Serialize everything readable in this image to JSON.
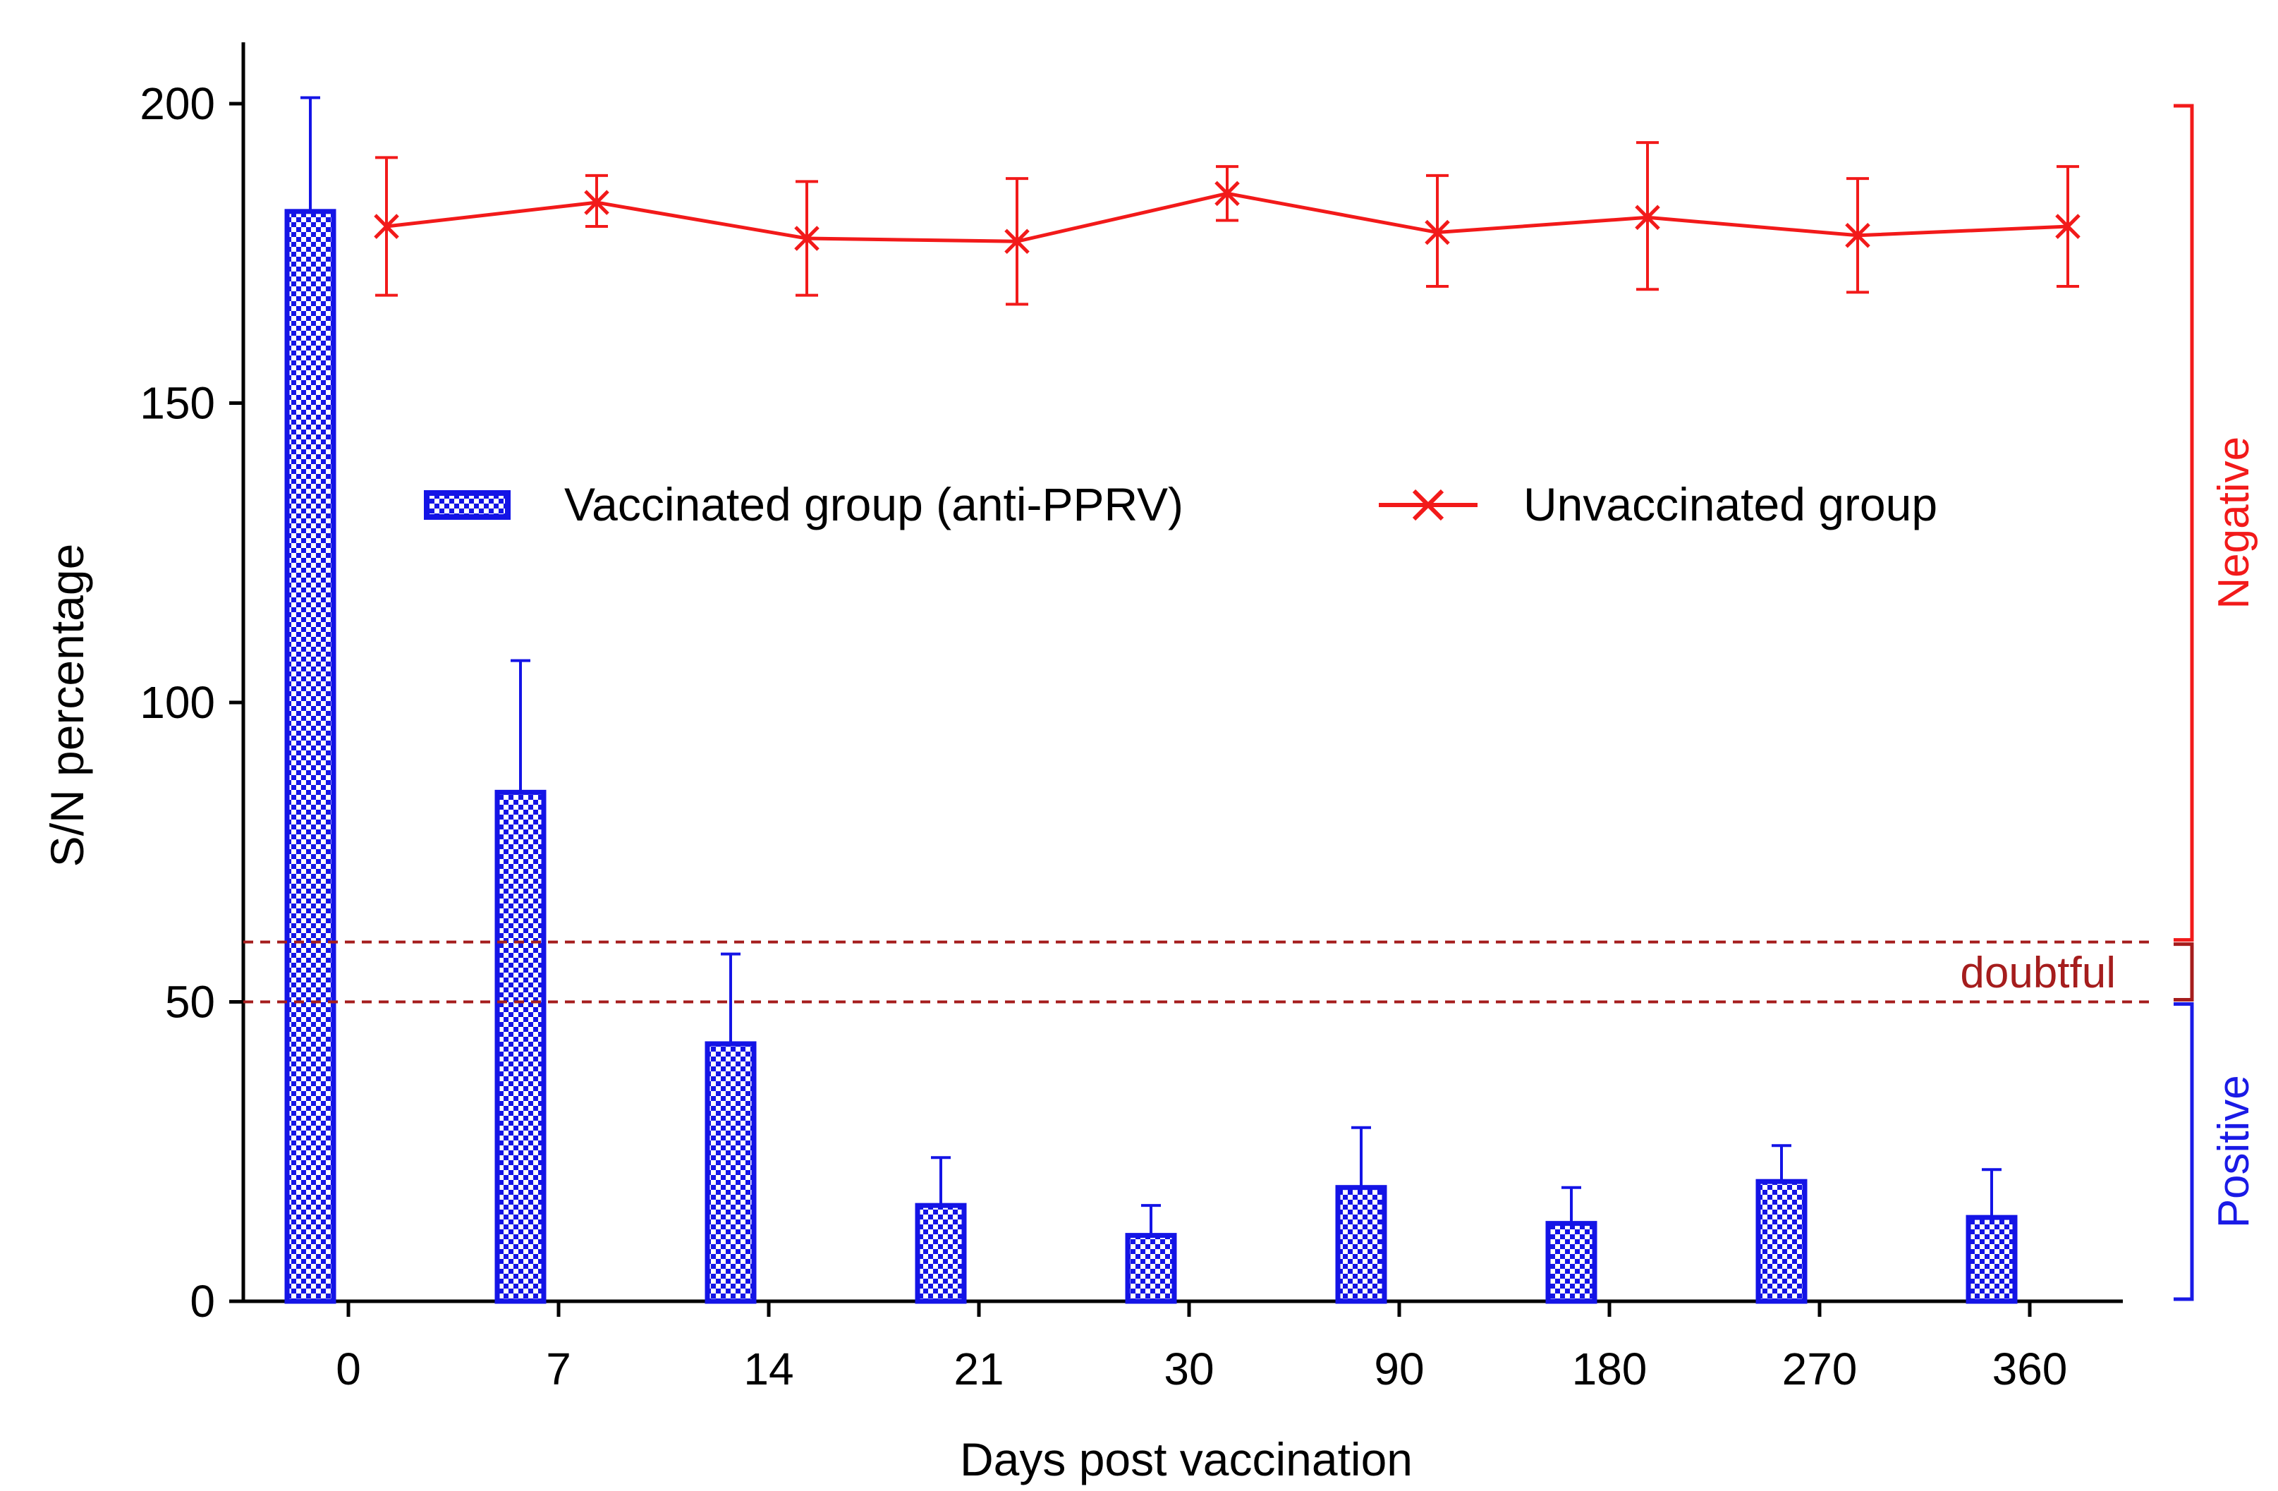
{
  "chart_data": {
    "type": "bar",
    "title": "",
    "xlabel": "Days post vaccination",
    "ylabel": "S/N percentage",
    "ylim": [
      0,
      210
    ],
    "yticks": [
      0,
      50,
      100,
      150,
      200
    ],
    "categories": [
      "0",
      "7",
      "14",
      "21",
      "30",
      "90",
      "180",
      "270",
      "360"
    ],
    "series": [
      {
        "name": "Vaccinated group (anti-PPRV)",
        "kind": "bar",
        "color": "#1414e6",
        "values": [
          182,
          85,
          43,
          16,
          11,
          19,
          13,
          20,
          14
        ],
        "error_upper": [
          201,
          107,
          58,
          24,
          16,
          29,
          19,
          26,
          22
        ]
      },
      {
        "name": "Unvaccinated group",
        "kind": "line",
        "color": "#f21a1a",
        "marker": "x",
        "values": [
          179.5,
          183.5,
          177.5,
          177,
          185,
          178.5,
          181,
          178,
          179.5
        ],
        "error_lower": [
          168,
          179.5,
          168,
          166.5,
          180.5,
          169.5,
          169,
          168.5,
          169.5
        ],
        "error_upper": [
          191,
          188,
          187,
          187.5,
          189.5,
          188,
          193.5,
          187.5,
          189.5
        ]
      }
    ],
    "thresholds": [
      {
        "value": 60,
        "color": "#a51d1d"
      },
      {
        "value": 50,
        "color": "#a51d1d"
      }
    ],
    "ranges": [
      {
        "label": "Negative",
        "from": 60,
        "to": 200,
        "color": "#f21a1a"
      },
      {
        "label": "doubtful",
        "from": 50,
        "to": 60,
        "color": "#a51d1d"
      },
      {
        "label": "Positive",
        "from": 0,
        "to": 50,
        "color": "#1a1ae6"
      }
    ],
    "legend_position": "upper-center"
  }
}
